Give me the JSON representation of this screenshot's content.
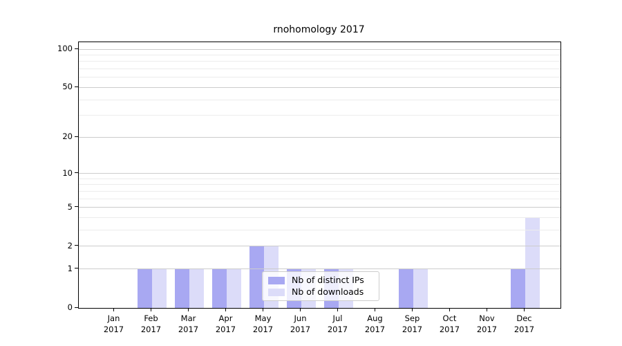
{
  "title": "rnohomology 2017",
  "chart_data": {
    "type": "bar",
    "title": "rnohomology 2017",
    "categories": [
      {
        "month": "Jan",
        "year": "2017"
      },
      {
        "month": "Feb",
        "year": "2017"
      },
      {
        "month": "Mar",
        "year": "2017"
      },
      {
        "month": "Apr",
        "year": "2017"
      },
      {
        "month": "May",
        "year": "2017"
      },
      {
        "month": "Jun",
        "year": "2017"
      },
      {
        "month": "Jul",
        "year": "2017"
      },
      {
        "month": "Aug",
        "year": "2017"
      },
      {
        "month": "Sep",
        "year": "2017"
      },
      {
        "month": "Oct",
        "year": "2017"
      },
      {
        "month": "Nov",
        "year": "2017"
      },
      {
        "month": "Dec",
        "year": "2017"
      }
    ],
    "series": [
      {
        "name": "Nb of distinct IPs",
        "color": "#a8a8f2",
        "values": [
          0,
          1,
          1,
          1,
          2,
          1,
          1,
          0,
          1,
          0,
          0,
          1
        ]
      },
      {
        "name": "Nb of downloads",
        "color": "#dcdcf9",
        "values": [
          0,
          1,
          1,
          1,
          2,
          1,
          1,
          0,
          1,
          0,
          0,
          4
        ]
      }
    ],
    "xlabel": "",
    "ylabel": "",
    "yscale": "log10(1+v)",
    "yticks": [
      0,
      1,
      2,
      5,
      10,
      20,
      50,
      100
    ],
    "minor_yticks": [
      3,
      4,
      6,
      7,
      8,
      9,
      30,
      40,
      60,
      70,
      80,
      90
    ],
    "ylim_top_value": 113,
    "grid": "on",
    "legend_position": "lower-center-right",
    "colors": {
      "major_grid": "#cccccc",
      "minor_grid": "#ececec",
      "axis": "#000000",
      "background": "#ffffff"
    }
  }
}
